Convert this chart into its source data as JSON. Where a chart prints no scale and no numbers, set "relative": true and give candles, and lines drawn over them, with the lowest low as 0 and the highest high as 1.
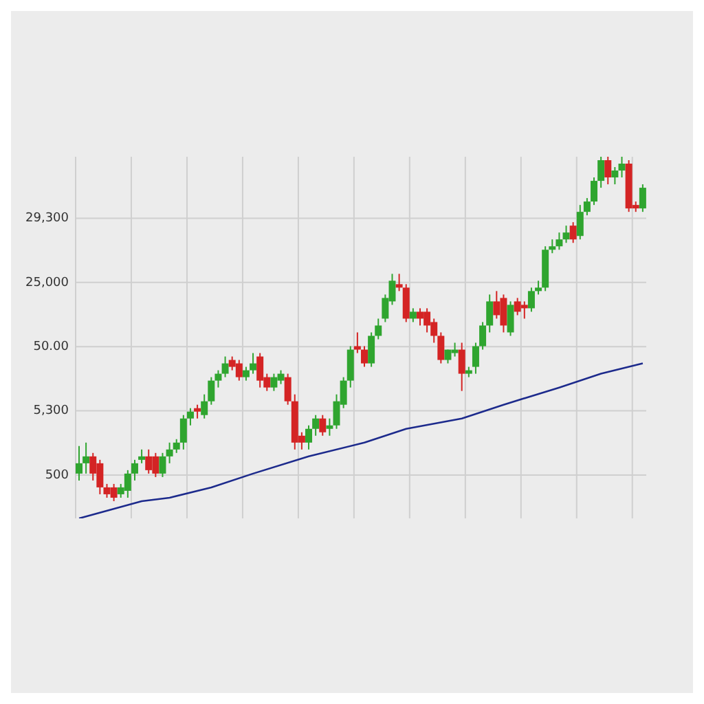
{
  "chart_data": {
    "type": "candlestick",
    "relative": true,
    "grid": true,
    "colors": [
      "#2fa52f",
      "#2fa52f",
      "#d42424",
      "#d42424",
      "#d42424",
      "#d42424",
      "#2fa52f",
      "#2fa52f",
      "#2fa52f",
      "#2fa52f",
      "#d42424",
      "#d42424",
      "#2fa52f",
      "#2fa52f",
      "#2fa52f",
      "#2fa52f",
      "#2fa52f",
      "#d42424",
      "#2fa52f",
      "#2fa52f",
      "#2fa52f",
      "#2fa52f",
      "#d42424",
      "#d42424",
      "#2fa52f",
      "#2fa52f",
      "#d42424",
      "#d42424",
      "#2fa52f",
      "#2fa52f",
      "#d42424",
      "#d42424",
      "#d42424",
      "#2fa52f",
      "#2fa52f",
      "#d42424",
      "#2fa52f",
      "#2fa52f",
      "#2fa52f",
      "#2fa52f",
      "#d42424",
      "#d42424",
      "#2fa52f",
      "#2fa52f",
      "#2fa52f",
      "#2fa52f",
      "#d42424",
      "#d42424",
      "#2fa52f",
      "#d42424",
      "#d42424",
      "#d42424",
      "#d42424",
      "#2fa52f",
      "#2fa52f",
      "#d42424",
      "#2fa52f",
      "#2fa52f",
      "#2fa52f",
      "#2fa52f",
      "#d42424",
      "#d42424",
      "#2fa52f",
      "#d42424",
      "#d42424",
      "#2fa52f",
      "#2fa52f",
      "#2fa52f",
      "#2fa52f",
      "#2fa52f",
      "#2fa52f",
      "#d42424",
      "#2fa52f",
      "#2fa52f",
      "#2fa52f",
      "#2fa52f",
      "#d42424",
      "#2fa52f",
      "#2fa52f",
      "#d42424",
      "#d42424",
      "#2fa52f"
    ],
    "annotations": [
      "29,300",
      "25,000",
      "50.00",
      "5,300",
      "500"
    ],
    "categories": [
      null,
      null,
      null,
      null,
      null,
      null,
      null,
      null,
      null,
      null,
      null,
      null,
      null,
      null,
      null,
      null,
      null,
      null,
      null,
      null,
      null,
      null,
      null,
      null,
      null,
      null,
      null,
      null,
      null,
      null,
      null,
      null,
      null,
      null,
      null,
      null,
      null,
      null,
      null,
      null,
      null,
      null,
      null,
      null,
      null,
      null,
      null,
      null,
      null,
      null,
      null,
      null,
      null,
      null,
      null,
      null,
      null,
      null,
      null,
      null,
      null,
      null,
      null,
      null,
      null,
      null,
      null,
      null,
      null,
      null,
      null,
      null,
      null,
      null,
      null,
      null,
      null,
      null,
      null,
      null,
      null,
      null
    ],
    "ohlc": [
      [
        0.08,
        0.16,
        0.06,
        0.11
      ],
      [
        0.11,
        0.17,
        0.08,
        0.13
      ],
      [
        0.13,
        0.14,
        0.06,
        0.08
      ],
      [
        0.11,
        0.12,
        0.02,
        0.04
      ],
      [
        0.04,
        0.05,
        0.01,
        0.02
      ],
      [
        0.04,
        0.05,
        0,
        0.01
      ],
      [
        0.02,
        0.05,
        0.01,
        0.04
      ],
      [
        0.03,
        0.09,
        0.01,
        0.08
      ],
      [
        0.08,
        0.12,
        0.06,
        0.11
      ],
      [
        0.12,
        0.15,
        0.11,
        0.13
      ],
      [
        0.13,
        0.15,
        0.08,
        0.09
      ],
      [
        0.13,
        0.14,
        0.07,
        0.08
      ],
      [
        0.08,
        0.14,
        0.07,
        0.13
      ],
      [
        0.13,
        0.17,
        0.11,
        0.15
      ],
      [
        0.15,
        0.18,
        0.14,
        0.17
      ],
      [
        0.17,
        0.25,
        0.15,
        0.24
      ],
      [
        0.24,
        0.27,
        0.22,
        0.26
      ],
      [
        0.27,
        0.28,
        0.24,
        0.26
      ],
      [
        0.25,
        0.31,
        0.24,
        0.29
      ],
      [
        0.29,
        0.36,
        0.28,
        0.35
      ],
      [
        0.35,
        0.38,
        0.33,
        0.37
      ],
      [
        0.37,
        0.42,
        0.36,
        0.4
      ],
      [
        0.41,
        0.42,
        0.38,
        0.39
      ],
      [
        0.4,
        0.41,
        0.35,
        0.36
      ],
      [
        0.36,
        0.39,
        0.35,
        0.38
      ],
      [
        0.38,
        0.43,
        0.37,
        0.4
      ],
      [
        0.42,
        0.43,
        0.33,
        0.35
      ],
      [
        0.36,
        0.37,
        0.32,
        0.33
      ],
      [
        0.33,
        0.37,
        0.32,
        0.36
      ],
      [
        0.35,
        0.38,
        0.34,
        0.37
      ],
      [
        0.36,
        0.37,
        0.28,
        0.29
      ],
      [
        0.29,
        0.31,
        0.15,
        0.17
      ],
      [
        0.19,
        0.2,
        0.15,
        0.17
      ],
      [
        0.17,
        0.22,
        0.15,
        0.21
      ],
      [
        0.21,
        0.25,
        0.19,
        0.24
      ],
      [
        0.24,
        0.25,
        0.19,
        0.2
      ],
      [
        0.21,
        0.24,
        0.19,
        0.22
      ],
      [
        0.22,
        0.31,
        0.21,
        0.29
      ],
      [
        0.28,
        0.36,
        0.27,
        0.35
      ],
      [
        0.35,
        0.45,
        0.33,
        0.44
      ],
      [
        0.45,
        0.49,
        0.43,
        0.44
      ],
      [
        0.44,
        0.45,
        0.39,
        0.4
      ],
      [
        0.4,
        0.49,
        0.39,
        0.48
      ],
      [
        0.48,
        0.53,
        0.47,
        0.51
      ],
      [
        0.53,
        0.6,
        0.52,
        0.59
      ],
      [
        0.58,
        0.66,
        0.57,
        0.64
      ],
      [
        0.63,
        0.66,
        0.61,
        0.62
      ],
      [
        0.62,
        0.63,
        0.52,
        0.53
      ],
      [
        0.53,
        0.56,
        0.52,
        0.55
      ],
      [
        0.55,
        0.56,
        0.51,
        0.53
      ],
      [
        0.55,
        0.56,
        0.49,
        0.51
      ],
      [
        0.52,
        0.53,
        0.46,
        0.48
      ],
      [
        0.48,
        0.49,
        0.4,
        0.41
      ],
      [
        0.41,
        0.44,
        0.4,
        0.44
      ],
      [
        0.43,
        0.46,
        0.42,
        0.44
      ],
      [
        0.44,
        0.46,
        0.32,
        0.37
      ],
      [
        0.37,
        0.39,
        0.36,
        0.38
      ],
      [
        0.39,
        0.46,
        0.37,
        0.45
      ],
      [
        0.45,
        0.52,
        0.44,
        0.51
      ],
      [
        0.51,
        0.6,
        0.49,
        0.58
      ],
      [
        0.58,
        0.61,
        0.53,
        0.54
      ],
      [
        0.59,
        0.6,
        0.49,
        0.51
      ],
      [
        0.49,
        0.58,
        0.48,
        0.57
      ],
      [
        0.58,
        0.59,
        0.54,
        0.55
      ],
      [
        0.57,
        0.58,
        0.53,
        0.56
      ],
      [
        0.56,
        0.62,
        0.55,
        0.61
      ],
      [
        0.61,
        0.64,
        0.6,
        0.62
      ],
      [
        0.62,
        0.74,
        0.61,
        0.73
      ],
      [
        0.73,
        0.76,
        0.72,
        0.74
      ],
      [
        0.74,
        0.78,
        0.73,
        0.76
      ],
      [
        0.76,
        0.8,
        0.75,
        0.78
      ],
      [
        0.8,
        0.81,
        0.75,
        0.76
      ],
      [
        0.77,
        0.86,
        0.76,
        0.84
      ],
      [
        0.84,
        0.88,
        0.83,
        0.87
      ],
      [
        0.87,
        0.94,
        0.86,
        0.93
      ],
      [
        0.93,
        1,
        0.91,
        0.99
      ],
      [
        0.99,
        1,
        0.92,
        0.94
      ],
      [
        0.94,
        0.97,
        0.92,
        0.96
      ],
      [
        0.96,
        1,
        0.94,
        0.98
      ],
      [
        0.98,
        0.99,
        0.84,
        0.85
      ],
      [
        0.86,
        0.87,
        0.84,
        0.85
      ],
      [
        0.85,
        0.92,
        0.84,
        0.91
      ]
    ],
    "series": [
      {
        "type": "line",
        "color": "#1c2a8c",
        "values": [
          -0.05,
          null,
          null,
          null,
          null,
          null,
          null,
          null,
          null,
          0,
          null,
          null,
          null,
          0.01,
          null,
          null,
          null,
          null,
          null,
          0.04,
          null,
          null,
          null,
          null,
          null,
          0.08,
          null,
          null,
          null,
          null,
          null,
          null,
          null,
          0.13,
          null,
          null,
          null,
          null,
          null,
          null,
          null,
          0.17,
          null,
          null,
          null,
          null,
          null,
          0.21,
          null,
          null,
          null,
          null,
          null,
          null,
          null,
          0.24,
          null,
          null,
          null,
          null,
          null,
          0.28,
          null,
          null,
          null,
          null,
          null,
          null,
          null,
          0.33,
          null,
          null,
          null,
          null,
          null,
          0.37,
          null,
          null,
          null,
          null,
          null,
          0.4
        ]
      }
    ]
  }
}
